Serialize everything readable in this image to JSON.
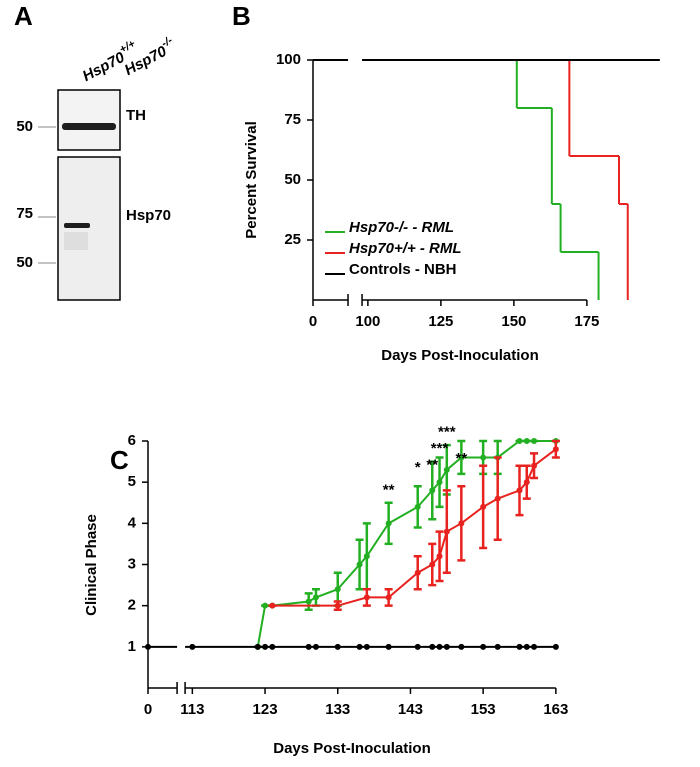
{
  "panel_a": {
    "letter": "A",
    "lanes": [
      {
        "base": "Hsp70",
        "sup": "+/+"
      },
      {
        "base": "Hsp70",
        "sup": "-/-"
      }
    ],
    "blots": [
      {
        "label": "TH",
        "markers": [
          "50"
        ]
      },
      {
        "label": "Hsp70",
        "markers": [
          "75",
          "50"
        ]
      }
    ]
  },
  "chart_data": [
    {
      "type": "step",
      "panel": "B",
      "xlabel": "Days Post-Inoculation",
      "ylabel": "Percent Survival",
      "xlim": [
        0,
        200
      ],
      "xbreak": [
        12,
        98
      ],
      "xticks": [
        0,
        100,
        125,
        150,
        175
      ],
      "ylim": [
        0,
        100
      ],
      "yticks": [
        25,
        50,
        75,
        100
      ],
      "legend": "lower left",
      "series": [
        {
          "name": "Hsp70-/- - RML",
          "color": "#22b022",
          "x": [
            0,
            151,
            163,
            166,
            179
          ],
          "values": [
            100,
            80,
            40,
            20,
            0
          ]
        },
        {
          "name": "Hsp70+/+ - RML",
          "color": "#e8231f",
          "x": [
            0,
            169,
            186,
            189
          ],
          "values": [
            100,
            60,
            40,
            0
          ]
        },
        {
          "name": "Controls - NBH",
          "color": "#000000",
          "x": [
            0,
            200
          ],
          "values": [
            100,
            100
          ]
        }
      ]
    },
    {
      "type": "line",
      "panel": "C",
      "xlabel": "Days Post-Inoculation",
      "ylabel": "Clinical Phase",
      "xlim": [
        0,
        163
      ],
      "xbreak": [
        4,
        112
      ],
      "xticks": [
        0,
        113,
        123,
        133,
        143,
        153,
        163
      ],
      "ylim": [
        0,
        6
      ],
      "yticks": [
        1,
        2,
        3,
        4,
        5,
        6
      ],
      "series": [
        {
          "color": "#22b022",
          "x": [
            122,
            123,
            124,
            129,
            130,
            133,
            136,
            137,
            140,
            144,
            146,
            147,
            148,
            150,
            153,
            155,
            158,
            159,
            160,
            163
          ],
          "values": [
            1,
            2,
            2,
            2.1,
            2.2,
            2.4,
            3.0,
            3.2,
            4.0,
            4.4,
            4.8,
            5.0,
            5.3,
            5.6,
            5.6,
            5.6,
            6,
            6,
            6,
            6
          ],
          "errors": [
            0,
            0,
            0,
            0.2,
            0.2,
            0.4,
            0.6,
            0.8,
            0.5,
            0.5,
            0.7,
            0.6,
            0.6,
            0.4,
            0.4,
            0.4,
            0,
            0,
            0,
            0
          ]
        },
        {
          "color": "#e8231f",
          "x": [
            124,
            133,
            137,
            140,
            144,
            146,
            147,
            148,
            150,
            153,
            155,
            158,
            159,
            160,
            163
          ],
          "values": [
            2,
            2,
            2.2,
            2.2,
            2.8,
            3.0,
            3.2,
            3.8,
            4.0,
            4.4,
            4.6,
            4.8,
            5.0,
            5.4,
            5.8
          ],
          "errors": [
            0,
            0.1,
            0.2,
            0.2,
            0.4,
            0.5,
            0.6,
            1.0,
            0.9,
            1.0,
            1.0,
            0.6,
            0.4,
            0.3,
            0.2
          ]
        },
        {
          "color": "#000000",
          "x": [
            0,
            113,
            122,
            123,
            124,
            129,
            130,
            133,
            136,
            137,
            140,
            144,
            146,
            147,
            148,
            150,
            153,
            155,
            158,
            159,
            160,
            163
          ],
          "values": [
            1,
            1,
            1,
            1,
            1,
            1,
            1,
            1,
            1,
            1,
            1,
            1,
            1,
            1,
            1,
            1,
            1,
            1,
            1,
            1,
            1,
            1
          ]
        }
      ],
      "annotations": [
        {
          "text": "**",
          "x": 140,
          "y": 4.8
        },
        {
          "text": "*",
          "x": 144,
          "y": 5.34
        },
        {
          "text": "**",
          "x": 146,
          "y": 5.4
        },
        {
          "text": "***",
          "x": 147,
          "y": 5.8
        },
        {
          "text": "***",
          "x": 148,
          "y": 6.2
        },
        {
          "text": "**",
          "x": 150,
          "y": 5.56
        }
      ]
    }
  ]
}
